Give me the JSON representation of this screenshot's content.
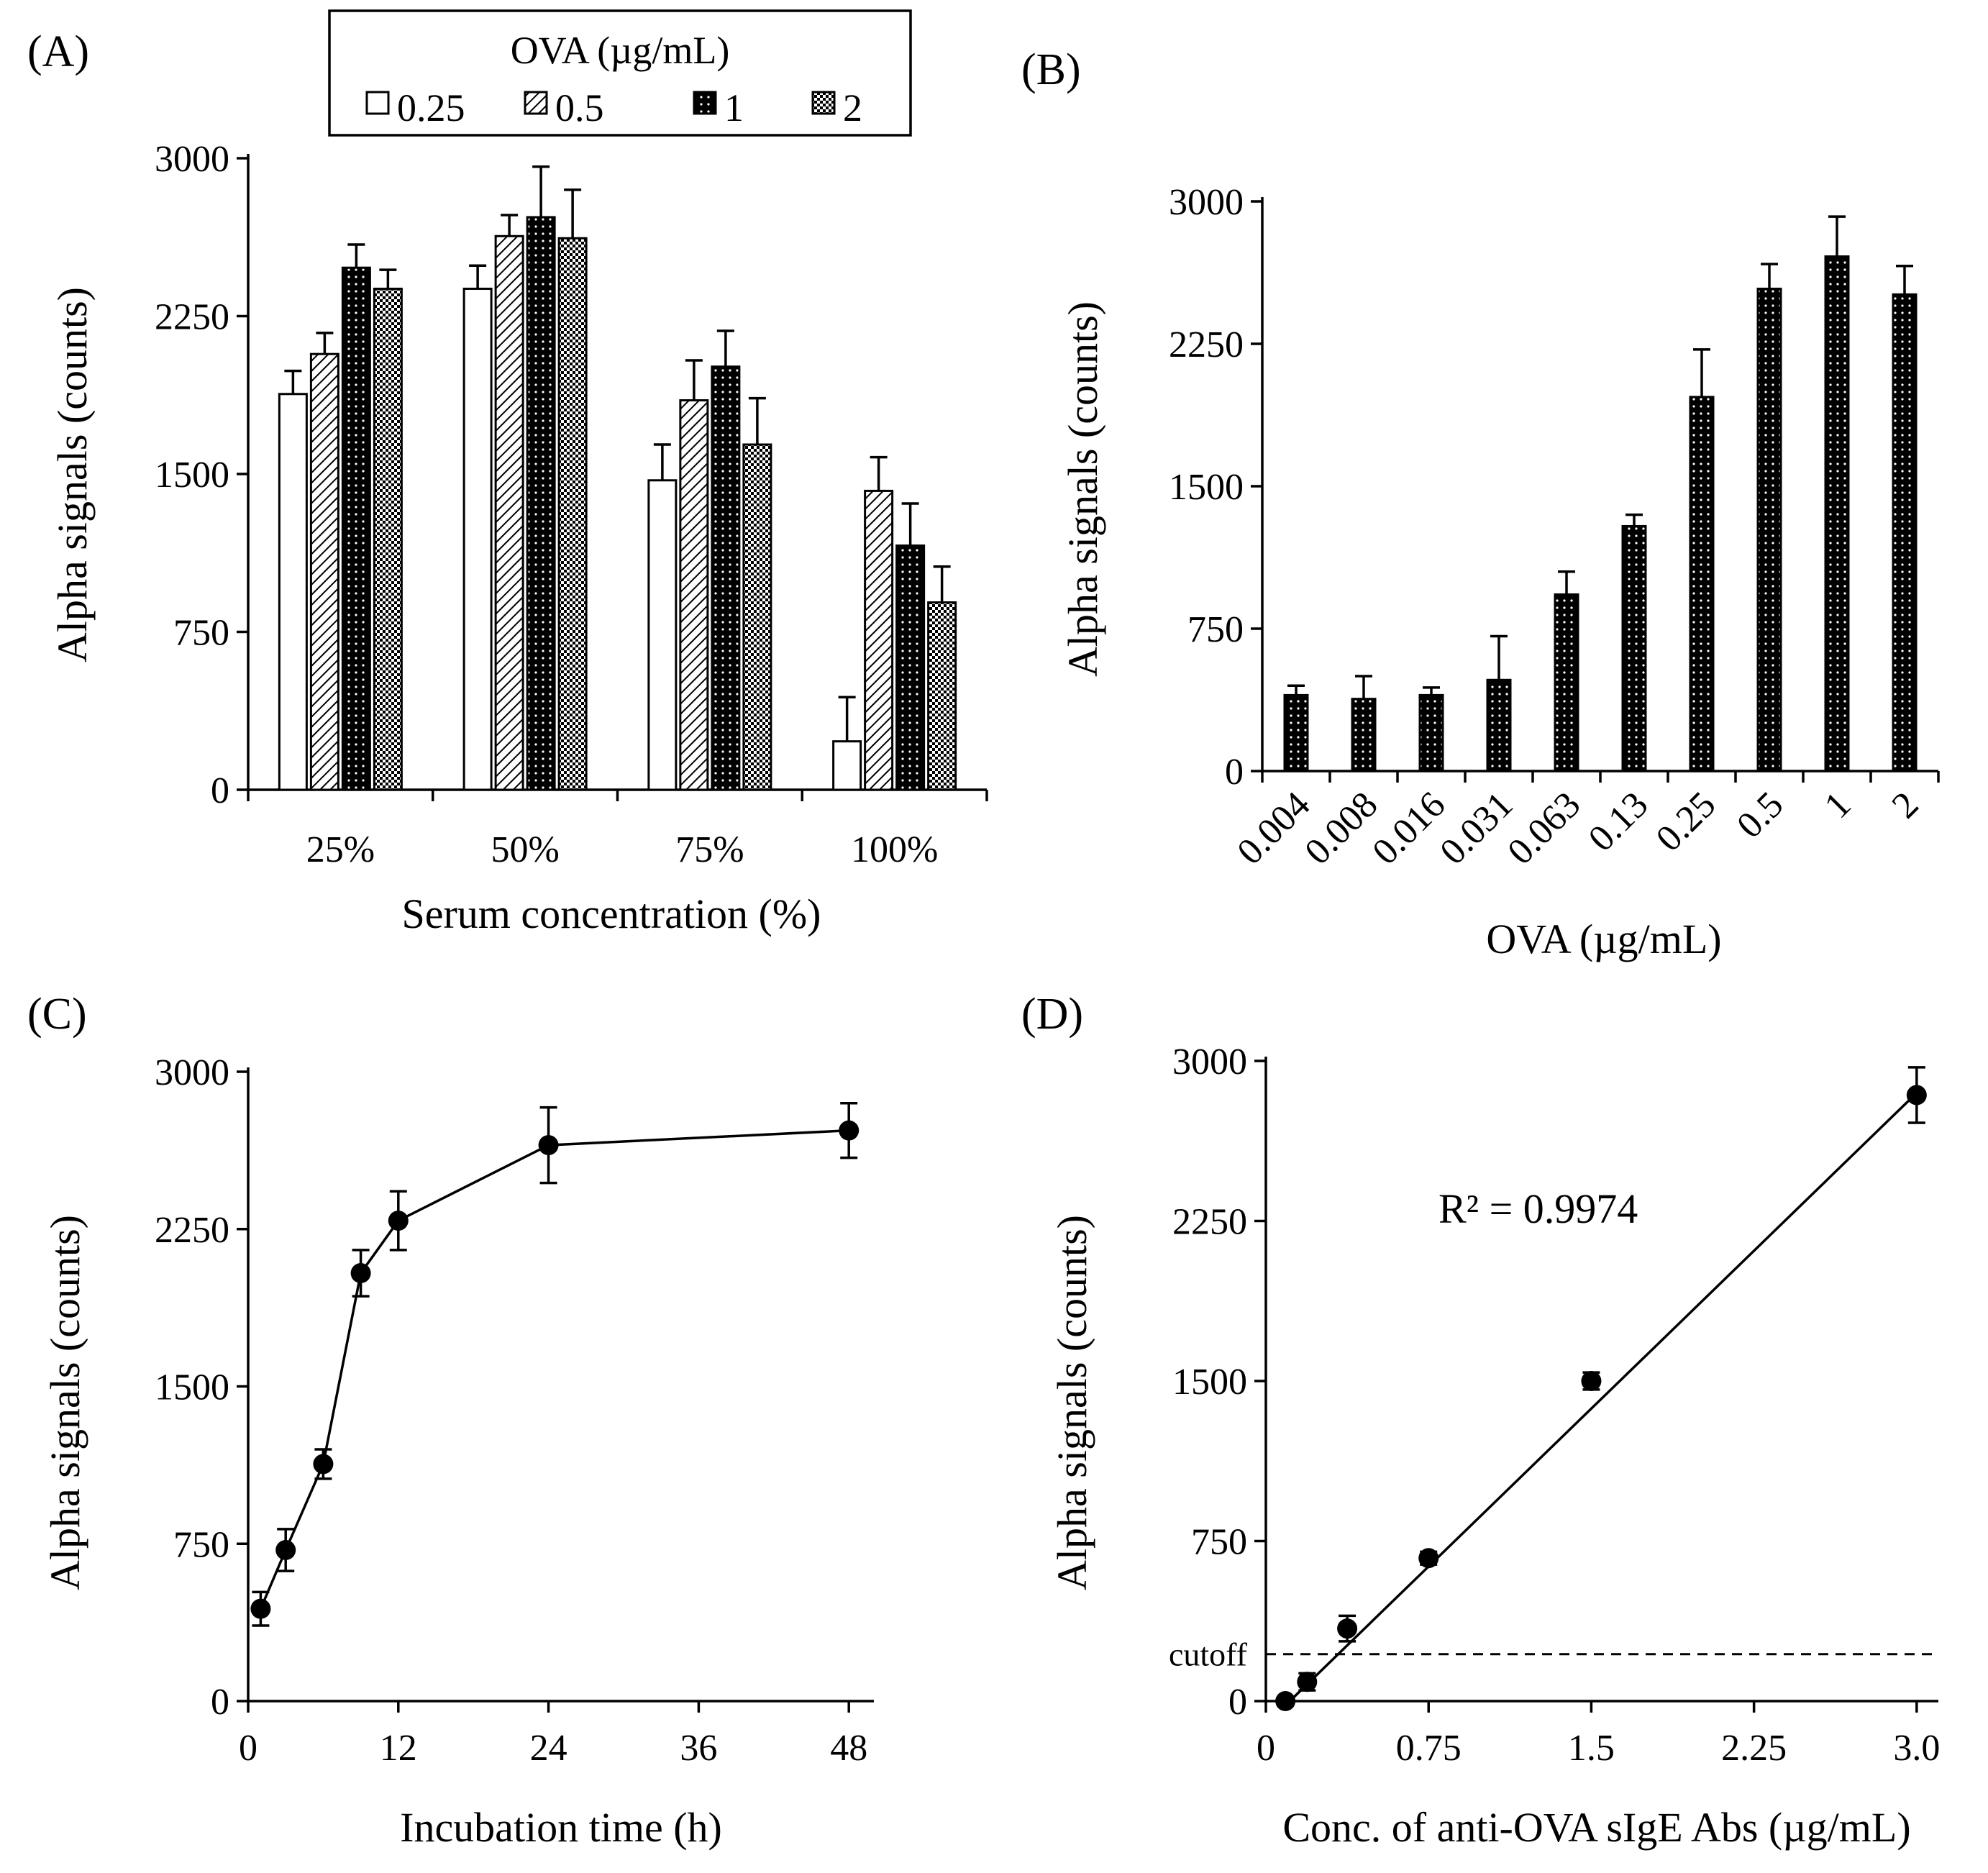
{
  "chart_data": [
    {
      "id": "A",
      "panel_label": "(A)",
      "type": "bar",
      "xlabel": "Serum concentration (%)",
      "ylabel": "Alpha signals (counts)",
      "ylim": [
        0,
        3000
      ],
      "yticks": [
        0,
        750,
        1500,
        2250,
        3000
      ],
      "categories": [
        "25%",
        "50%",
        "75%",
        "100%"
      ],
      "legend": {
        "title": "OVA (µg/mL)",
        "position": "top-center"
      },
      "series": [
        {
          "name": "0.25",
          "pattern": "white",
          "values": [
            1880,
            2380,
            1470,
            230
          ],
          "errors": [
            110,
            110,
            170,
            210
          ]
        },
        {
          "name": "0.5",
          "pattern": "hatch",
          "values": [
            2070,
            2630,
            1850,
            1420
          ],
          "errors": [
            100,
            100,
            190,
            160
          ]
        },
        {
          "name": "1",
          "pattern": "black-dots",
          "values": [
            2480,
            2720,
            2010,
            1160
          ],
          "errors": [
            110,
            240,
            170,
            200
          ]
        },
        {
          "name": "2",
          "pattern": "checker",
          "values": [
            2380,
            2620,
            1640,
            890
          ],
          "errors": [
            90,
            230,
            220,
            170
          ]
        }
      ]
    },
    {
      "id": "B",
      "panel_label": "(B)",
      "type": "bar",
      "xlabel": "OVA (µg/mL)",
      "ylabel": "Alpha signals (counts)",
      "ylim": [
        0,
        3000
      ],
      "yticks": [
        0,
        750,
        1500,
        2250,
        3000
      ],
      "categories": [
        "0.004",
        "0.008",
        "0.016",
        "0.031",
        "0.063",
        "0.13",
        "0.25",
        "0.5",
        "1",
        "2"
      ],
      "values": [
        400,
        380,
        400,
        480,
        930,
        1290,
        1970,
        2540,
        2710,
        2510
      ],
      "errors": [
        50,
        120,
        40,
        230,
        120,
        60,
        250,
        130,
        210,
        150
      ]
    },
    {
      "id": "C",
      "panel_label": "(C)",
      "type": "line",
      "xlabel": "Incubation time (h)",
      "ylabel": "Alpha signals (counts)",
      "xlim": [
        0,
        50
      ],
      "xticks": [
        0,
        12,
        24,
        36,
        48
      ],
      "ylim": [
        0,
        3000
      ],
      "yticks": [
        0,
        750,
        1500,
        2250,
        3000
      ],
      "x": [
        1,
        3,
        6,
        9,
        12,
        24,
        48
      ],
      "y": [
        440,
        720,
        1130,
        2040,
        2290,
        2650,
        2720
      ],
      "errors": [
        80,
        100,
        70,
        110,
        140,
        180,
        130
      ]
    },
    {
      "id": "D",
      "panel_label": "(D)",
      "type": "scatter",
      "xlabel": "Conc. of anti-OVA sIgE Abs (µg/mL)",
      "ylabel": "Alpha signals (counts)",
      "xlim": [
        0,
        3.1
      ],
      "xticks": [
        0,
        0.75,
        1.5,
        2.25,
        3.0
      ],
      "xtick_labels": [
        "0",
        "0.75",
        "1.5",
        "2.25",
        "3.0"
      ],
      "ylim": [
        0,
        3000
      ],
      "yticks": [
        0,
        750,
        1500,
        2250,
        3000
      ],
      "x": [
        0.09,
        0.19,
        0.375,
        0.75,
        1.5,
        3.0
      ],
      "y": [
        0,
        90,
        340,
        670,
        1500,
        2840
      ],
      "errors": [
        10,
        40,
        60,
        30,
        40,
        130
      ],
      "fit_line": {
        "x": [
          0.09,
          3.0
        ],
        "y": [
          -20,
          2850
        ]
      },
      "annotation": "R² = 0.9974",
      "cutoff": {
        "label": "cutoff",
        "value": 220
      }
    }
  ]
}
